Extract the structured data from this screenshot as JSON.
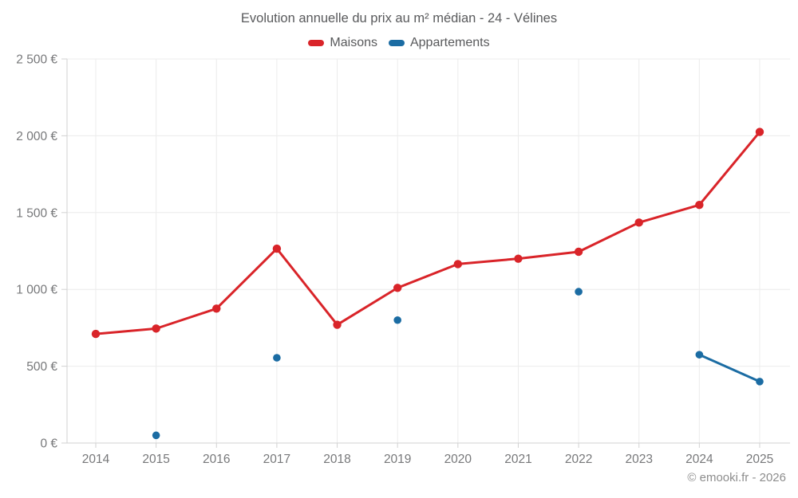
{
  "header": {
    "title": "Evolution annuelle du prix au m² médian - 24 - Vélines"
  },
  "legend": {
    "items": [
      {
        "label": "Maisons",
        "color": "#d92429"
      },
      {
        "label": "Appartements",
        "color": "#1b6ca3"
      }
    ]
  },
  "footer": {
    "copyright": "© emooki.fr - 2026"
  },
  "chart_data": {
    "type": "line",
    "title": "Evolution annuelle du prix au m² médian - 24 - Vélines",
    "categories": [
      "2014",
      "2015",
      "2016",
      "2017",
      "2018",
      "2019",
      "2020",
      "2021",
      "2022",
      "2023",
      "2024",
      "2025"
    ],
    "series": [
      {
        "name": "Maisons",
        "color": "#d92429",
        "values": [
          710,
          745,
          875,
          1265,
          770,
          1010,
          1165,
          1200,
          1245,
          1435,
          1550,
          2025
        ]
      },
      {
        "name": "Appartements",
        "color": "#1b6ca3",
        "values": [
          null,
          50,
          null,
          555,
          null,
          800,
          null,
          null,
          985,
          null,
          575,
          400
        ]
      }
    ],
    "xlabel": "",
    "ylabel": "",
    "ylim": [
      0,
      2500
    ],
    "yticks": [
      0,
      500,
      1000,
      1500,
      2000,
      2500
    ],
    "ytick_labels": [
      "0 €",
      "500 €",
      "1 000 €",
      "1 500 €",
      "2 000 €",
      "2 500 €"
    ],
    "grid": true,
    "legend_position": "top",
    "grid_color": "#ececec",
    "axis_color": "#d2d2d2"
  }
}
